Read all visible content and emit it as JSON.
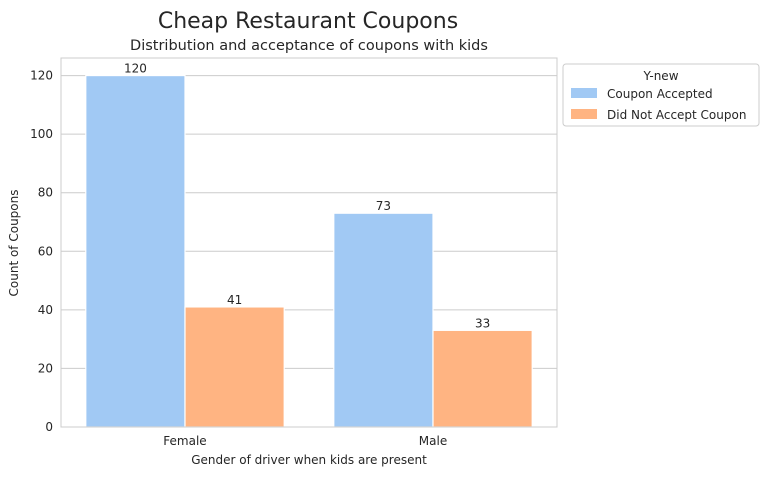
{
  "chart_data": {
    "type": "bar",
    "suptitle": "Cheap Restaurant Coupons",
    "title": "Distribution and acceptance of coupons with kids",
    "xlabel": "Gender of driver when kids are present",
    "ylabel": "Count of Coupons",
    "categories": [
      "Female",
      "Male"
    ],
    "series": [
      {
        "name": "Coupon Accepted",
        "values": [
          120,
          73
        ],
        "color": "#a1c9f4"
      },
      {
        "name": "Did Not Accept Coupon",
        "values": [
          41,
          33
        ],
        "color": "#ffb482"
      }
    ],
    "ylim": [
      0,
      126
    ],
    "yticks": [
      0,
      20,
      40,
      60,
      80,
      100,
      120
    ],
    "grid": true,
    "legend": {
      "title": "Y-new",
      "placement": "outside-top-right"
    }
  }
}
